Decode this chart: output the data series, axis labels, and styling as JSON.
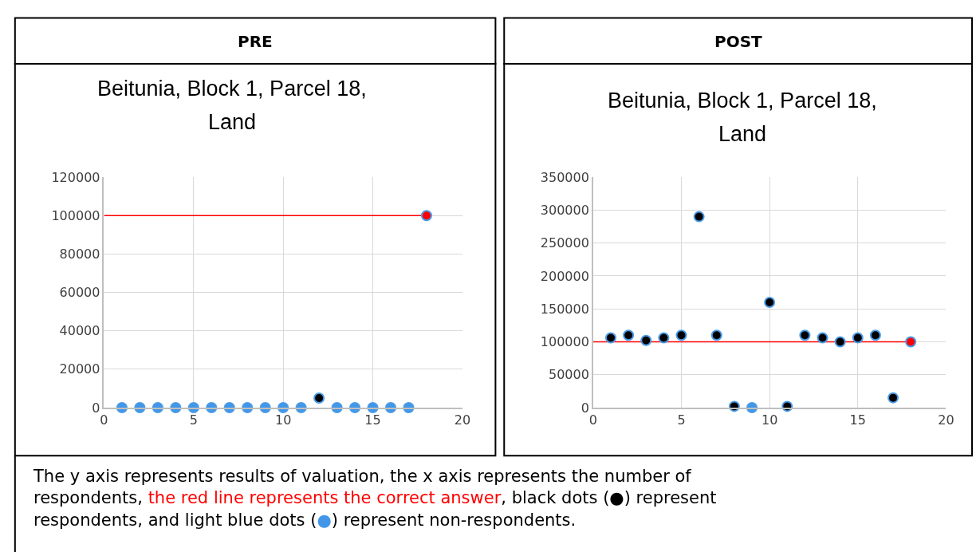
{
  "chart_data": [
    {
      "type": "scatter",
      "title": "Beitunia, Block 1, Parcel 18, Land",
      "annotations": [
        "PRE"
      ],
      "xlim": [
        0,
        20
      ],
      "xticks": [
        0,
        5,
        10,
        15,
        20
      ],
      "ylim": [
        0,
        120000
      ],
      "yticks": [
        0,
        20000,
        40000,
        60000,
        80000,
        100000,
        120000
      ],
      "grid": true,
      "marker": "circle",
      "series": [
        {
          "type": "line",
          "color": "#ff0000",
          "x": [
            0,
            18
          ],
          "values": [
            100000,
            100000
          ],
          "marker": "none",
          "line_style": "solid"
        },
        {
          "color": "#000000",
          "x": [
            12
          ],
          "values": [
            5000
          ]
        },
        {
          "color": "#4196e8",
          "x": [
            1,
            2,
            3,
            4,
            5,
            6,
            7,
            8,
            9,
            10,
            11,
            13,
            14,
            15,
            16,
            17
          ],
          "values": [
            0,
            0,
            0,
            0,
            0,
            0,
            0,
            0,
            0,
            0,
            0,
            0,
            0,
            0,
            0,
            0
          ]
        },
        {
          "color": "#ff0000",
          "x": [
            18
          ],
          "values": [
            100000
          ]
        }
      ]
    },
    {
      "type": "scatter",
      "title": "Beitunia, Block 1, Parcel 18, Land",
      "annotations": [
        "POST",
        "The y axis represents results of valuation, the x axis represents the number of respondents, ",
        "the red line represents the correct answer",
        ", black dots (●) represent respondents, and light blue dots (",
        "●",
        ") represent non-respondents."
      ],
      "xlim": [
        0,
        20
      ],
      "xticks": [
        0,
        5,
        10,
        15,
        20
      ],
      "ylim": [
        0,
        350000
      ],
      "yticks": [
        0,
        50000,
        100000,
        150000,
        200000,
        250000,
        300000,
        350000
      ],
      "grid": true,
      "marker": "circle",
      "series": [
        {
          "type": "line",
          "color": "#ff0000",
          "x": [
            0,
            18
          ],
          "values": [
            100000,
            100000
          ],
          "marker": "none",
          "line_style": "solid"
        },
        {
          "color": "#000000",
          "x": [
            1,
            2,
            3,
            4,
            5,
            6,
            7,
            8,
            10,
            11,
            12,
            13,
            14,
            15,
            16,
            17
          ],
          "values": [
            106000,
            110000,
            102000,
            106000,
            110000,
            290000,
            110000,
            2000,
            160000,
            2000,
            110000,
            106000,
            100000,
            106000,
            110000,
            15000
          ]
        },
        {
          "color": "#4196e8",
          "x": [
            9
          ],
          "values": [
            0
          ]
        },
        {
          "color": "#ff0000",
          "x": [
            18
          ],
          "values": [
            100000
          ]
        }
      ]
    }
  ]
}
